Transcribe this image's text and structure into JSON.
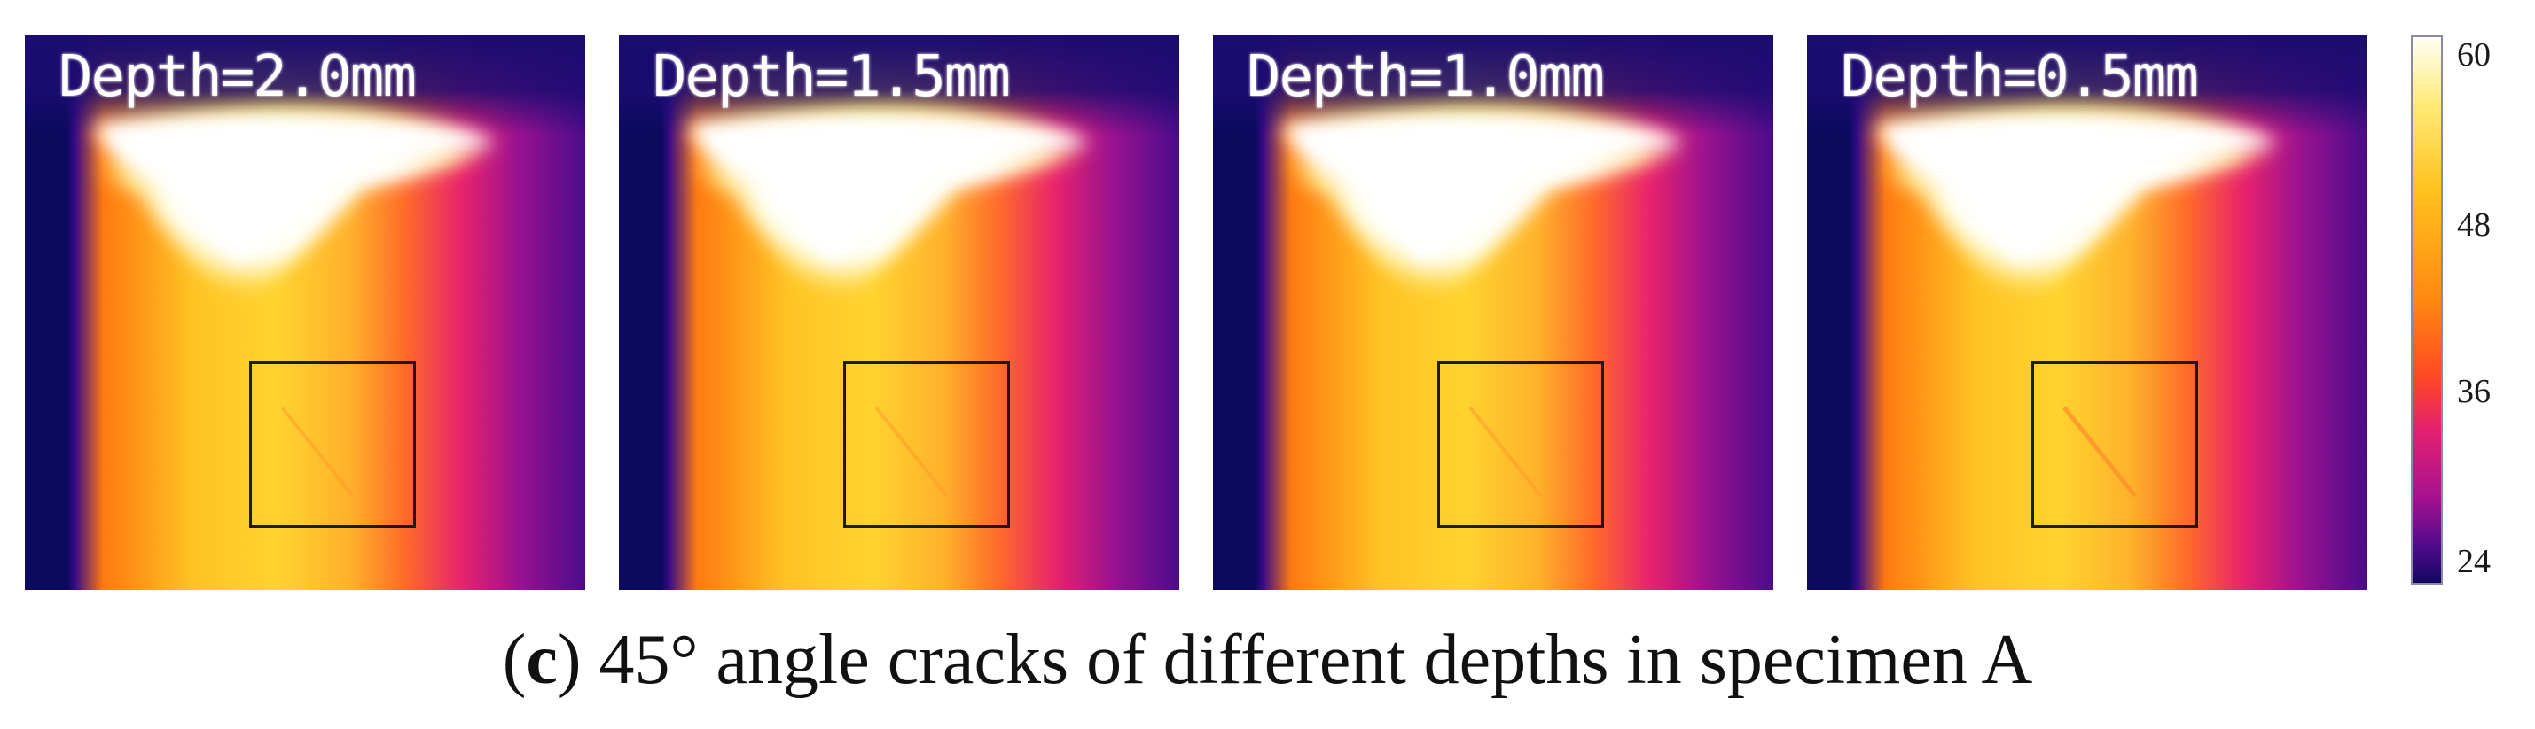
{
  "panels": [
    {
      "label": "Depth=2.0mm"
    },
    {
      "label": "Depth=1.5mm"
    },
    {
      "label": "Depth=1.0mm"
    },
    {
      "label": "Depth=0.5mm"
    }
  ],
  "colorbar": {
    "ticks": [
      "60",
      "48",
      "36",
      "24"
    ],
    "min": 24,
    "max": 60,
    "colors": [
      "#10085f",
      "#a8128f",
      "#ff4a22",
      "#ff8a10",
      "#ffc21e",
      "#fffff6"
    ]
  },
  "caption": {
    "letter": "c",
    "text": " 45° angle cracks of different depths in specimen A"
  }
}
